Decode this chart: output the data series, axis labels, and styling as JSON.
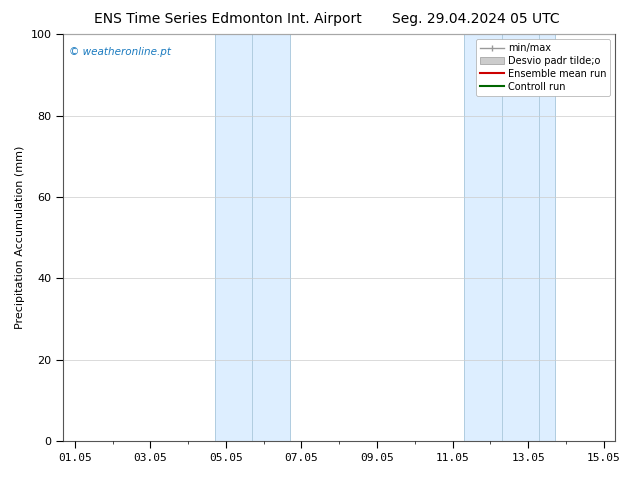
{
  "title_left": "ENS Time Series Edmonton Int. Airport",
  "title_right": "Seg. 29.04.2024 05 UTC",
  "ylabel": "Precipitation Accumulation (mm)",
  "watermark": "© weatheronline.pt",
  "ylim": [
    0,
    100
  ],
  "xlim": [
    -0.3,
    14.3
  ],
  "xtick_labels": [
    "01.05",
    "03.05",
    "05.05",
    "07.05",
    "09.05",
    "11.05",
    "13.05",
    "15.05"
  ],
  "xtick_positions": [
    0,
    2,
    4,
    6,
    8,
    10,
    12,
    14
  ],
  "yticks": [
    0,
    20,
    40,
    60,
    80,
    100
  ],
  "blue_bands": [
    {
      "xstart": 3.7,
      "xend": 5.7,
      "mid": 4.7
    },
    {
      "xstart": 10.3,
      "xend": 12.7,
      "mid1": 11.3,
      "mid2": 12.3
    }
  ],
  "band_fill_color": "#ddeeff",
  "band_line_color": "#b0cce0",
  "legend_items": [
    {
      "label": "min/max",
      "type": "errorbar",
      "color": "#999999"
    },
    {
      "label": "Desvio padr tilde;o",
      "type": "rect",
      "facecolor": "#cccccc",
      "edgecolor": "#999999"
    },
    {
      "label": "Ensemble mean run",
      "type": "line",
      "color": "#cc0000"
    },
    {
      "label": "Controll run",
      "type": "line",
      "color": "#006600"
    }
  ],
  "grid_color": "#cccccc",
  "spine_color": "#555555",
  "title_fontsize": 10,
  "label_fontsize": 8,
  "tick_fontsize": 8,
  "legend_fontsize": 7,
  "watermark_color": "#1a7abf",
  "background_color": "#ffffff"
}
